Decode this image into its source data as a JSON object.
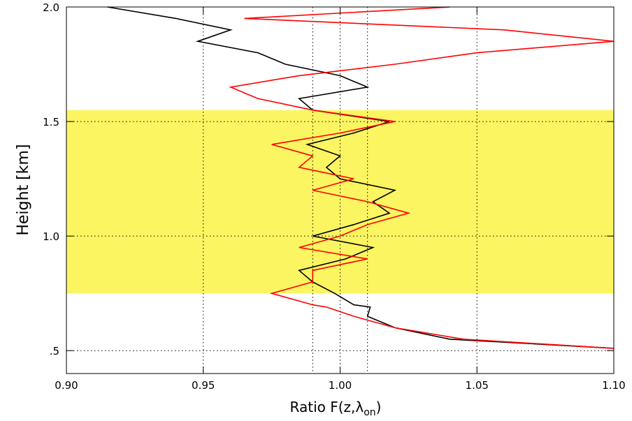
{
  "chart_data": {
    "type": "line",
    "xlabel_parts": [
      "Ratio F(z,λ",
      "on",
      ")"
    ],
    "ylabel": "Height [km]",
    "y": [
      0.51,
      0.55,
      0.6,
      0.65,
      0.69,
      0.7,
      0.75,
      0.8,
      0.85,
      0.9,
      0.95,
      1.0,
      1.05,
      1.1,
      1.15,
      1.2,
      1.25,
      1.3,
      1.35,
      1.4,
      1.45,
      1.5,
      1.55,
      1.6,
      1.65,
      1.7,
      1.75,
      1.8,
      1.85,
      1.9,
      1.95,
      2.0
    ],
    "series": [
      {
        "color": "#000000",
        "values": [
          1.1,
          1.04,
          1.02,
          1.01,
          1.011,
          1.005,
          0.998,
          0.99,
          0.985,
          1.002,
          1.012,
          0.99,
          1.005,
          1.018,
          1.012,
          1.02,
          1.0,
          0.995,
          1.0,
          0.988,
          1.005,
          1.018,
          0.99,
          0.985,
          1.01,
          1.0,
          0.98,
          0.97,
          0.948,
          0.96,
          0.94,
          0.915
        ]
      },
      {
        "color": "#ff0000",
        "values": [
          1.1,
          1.045,
          1.02,
          1.005,
          0.995,
          0.99,
          0.975,
          0.99,
          0.99,
          1.01,
          0.985,
          1.0,
          1.01,
          1.025,
          1.01,
          0.99,
          1.005,
          0.985,
          0.99,
          0.975,
          1.0,
          1.02,
          0.99,
          0.97,
          0.96,
          0.985,
          1.02,
          1.05,
          1.1,
          1.06,
          0.965,
          1.04
        ]
      }
    ],
    "band": [
      0.75,
      1.55
    ],
    "band_color": "#fbf562",
    "xlim": [
      0.9,
      1.1
    ],
    "xticks": [
      {
        "value": 0.9,
        "label": "0.90"
      },
      {
        "value": 0.95,
        "label": "0.95"
      },
      {
        "value": 1.0,
        "label": "1.00"
      },
      {
        "value": 1.05,
        "label": "1.05"
      },
      {
        "value": 1.1,
        "label": "1.10"
      }
    ],
    "ylim": [
      0.4,
      2.0
    ],
    "yticks": [
      {
        "value": 0.5,
        "label": ".5"
      },
      {
        "value": 1.0,
        "label": "1.0"
      },
      {
        "value": 1.5,
        "label": "1.5"
      },
      {
        "value": 2.0,
        "label": "2.0"
      }
    ],
    "xgrid": [
      0.95,
      0.99,
      1.0,
      1.01,
      1.05
    ],
    "ygrid": [
      0.5,
      1.0,
      1.5
    ]
  }
}
